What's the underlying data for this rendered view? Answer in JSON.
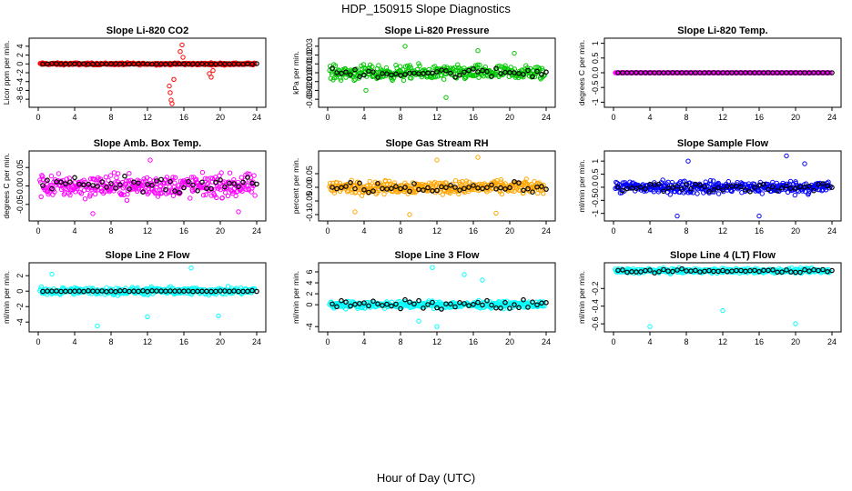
{
  "title": "HDP_150915  Slope Diagnostics",
  "xlabel": "Hour of Day (UTC)",
  "xticks": [
    0,
    4,
    8,
    12,
    16,
    20,
    24
  ],
  "colors": {
    "raw_is_panel_color": true,
    "hourly_mean": "#000000"
  },
  "chart_data": [
    {
      "type": "scatter",
      "title": "Slope Li-820 CO2",
      "ylabel": "Licor ppm per min.",
      "color": "#ff0000",
      "ylim": [
        -9,
        5
      ],
      "yticks": [
        -8,
        -6,
        -4,
        -2,
        0,
        2,
        4
      ],
      "xlim": [
        0,
        24
      ],
      "raw_spread": 0.35,
      "spikes": [
        [
          14.5,
          -6.5
        ],
        [
          14.6,
          -8.2
        ],
        [
          14.7,
          -9.0
        ],
        [
          14.4,
          -5.0
        ],
        [
          15.8,
          4.3
        ],
        [
          15.6,
          2.8
        ],
        [
          15.9,
          1.5
        ],
        [
          19.0,
          -3.0
        ],
        [
          19.2,
          -1.5
        ],
        [
          18.8,
          -2.2
        ],
        [
          14.9,
          -3.5
        ]
      ],
      "hourly_mean": {
        "mean": 0.0,
        "spread": 0.1
      }
    },
    {
      "type": "scatter",
      "title": "Slope Li-820 Pressure",
      "ylabel": "kPa per min.",
      "color": "#00c800",
      "ylim": [
        -0.035,
        0.035
      ],
      "yticks": [
        -0.03,
        -0.02,
        -0.01,
        0.0,
        0.01,
        0.02,
        0.03
      ],
      "xlim": [
        0,
        24
      ],
      "raw_spread": 0.012,
      "spikes": [
        [
          8.5,
          0.03
        ],
        [
          13.0,
          -0.028
        ],
        [
          16.5,
          0.025
        ],
        [
          4.2,
          -0.02
        ],
        [
          20.5,
          0.022
        ]
      ],
      "hourly_mean": {
        "mean": 0.0,
        "spread": 0.008
      }
    },
    {
      "type": "scatter",
      "title": "Slope Li-820 Temp.",
      "ylabel": "degrees C per min.",
      "color": "#ff00ff",
      "ylim": [
        -1.05,
        1.05
      ],
      "yticks": [
        -1.0,
        -0.5,
        0.0,
        0.5,
        1.0
      ],
      "xlim": [
        0,
        24
      ],
      "raw_spread": 0.005,
      "spikes": [],
      "hourly_mean": {
        "mean": 0.0,
        "spread": 0.003
      }
    },
    {
      "type": "scatter",
      "title": "Slope Amb. Box Temp.",
      "ylabel": "degrees C per min.",
      "color": "#ff00ff",
      "ylim": [
        -0.085,
        0.085
      ],
      "yticks": [
        -0.05,
        0.0,
        0.05
      ],
      "xlim": [
        0,
        24
      ],
      "raw_spread": 0.045,
      "spikes": [
        [
          12.3,
          0.07
        ],
        [
          6.0,
          -0.075
        ],
        [
          22.0,
          -0.07
        ]
      ],
      "hourly_mean": {
        "mean": 0.005,
        "spread": 0.03
      }
    },
    {
      "type": "scatter",
      "title": "Slope Gas Stream RH",
      "ylabel": "percent per min.",
      "color": "#ffa500",
      "ylim": [
        -0.11,
        0.12
      ],
      "yticks": [
        -0.1,
        -0.05,
        0.0,
        0.05
      ],
      "xlim": [
        0,
        24
      ],
      "raw_spread": 0.035,
      "spikes": [
        [
          12.0,
          0.1
        ],
        [
          16.5,
          0.11
        ],
        [
          3.0,
          -0.09
        ],
        [
          18.5,
          -0.095
        ],
        [
          9.0,
          -0.1
        ]
      ],
      "hourly_mean": {
        "mean": 0.0,
        "spread": 0.025
      }
    },
    {
      "type": "scatter",
      "title": "Slope Sample Flow",
      "ylabel": "ml/min per min.",
      "color": "#0000ff",
      "ylim": [
        -1.15,
        1.25
      ],
      "yticks": [
        -1.0,
        -0.5,
        0.0,
        0.5,
        1.0
      ],
      "xlim": [
        0,
        24
      ],
      "raw_spread": 0.35,
      "spikes": [
        [
          19.0,
          1.2
        ],
        [
          8.2,
          1.0
        ],
        [
          7.0,
          -1.1
        ],
        [
          16.0,
          -1.1
        ],
        [
          21.0,
          0.9
        ]
      ],
      "hourly_mean": {
        "mean": 0.0,
        "spread": 0.25
      }
    },
    {
      "type": "scatter",
      "title": "Slope Line 2 Flow",
      "ylabel": "ml/min per min.",
      "color": "#00ffff",
      "ylim": [
        -4.8,
        3.2
      ],
      "yticks": [
        -4,
        -2,
        0,
        2
      ],
      "xlim": [
        0,
        24
      ],
      "raw_spread": 0.7,
      "spikes": [
        [
          6.5,
          -4.5
        ],
        [
          12.0,
          -3.3
        ],
        [
          16.8,
          3.0
        ],
        [
          19.8,
          -3.2
        ],
        [
          1.5,
          2.2
        ]
      ],
      "hourly_mean": {
        "mean": 0.0,
        "spread": 0.1
      }
    },
    {
      "type": "scatter",
      "title": "Slope Line 3 Flow",
      "ylabel": "ml/min per min.",
      "color": "#00ffff",
      "ylim": [
        -4.3,
        7.0
      ],
      "yticks": [
        -4,
        0,
        2,
        4,
        6
      ],
      "xlim": [
        0,
        24
      ],
      "raw_spread": 0.9,
      "spikes": [
        [
          11.5,
          6.8
        ],
        [
          12.0,
          -4.0
        ],
        [
          15.0,
          5.5
        ],
        [
          10.0,
          -3.0
        ],
        [
          17.0,
          4.5
        ]
      ],
      "hourly_mean": {
        "mean": 0.0,
        "spread": 1.2
      }
    },
    {
      "type": "scatter",
      "title": "Slope Line 4 (LT) Flow",
      "ylabel": "ml/min per min.",
      "color": "#00ffff",
      "ylim": [
        -0.65,
        0.05
      ],
      "yticks": [
        -0.6,
        -0.4,
        -0.2
      ],
      "xlim": [
        0,
        24
      ],
      "raw_spread": 0.04,
      "spikes": [
        [
          4.0,
          -0.63
        ],
        [
          12.0,
          -0.45
        ],
        [
          20.0,
          -0.6
        ]
      ],
      "hourly_mean": {
        "mean": 0.0,
        "spread": 0.03
      }
    }
  ]
}
